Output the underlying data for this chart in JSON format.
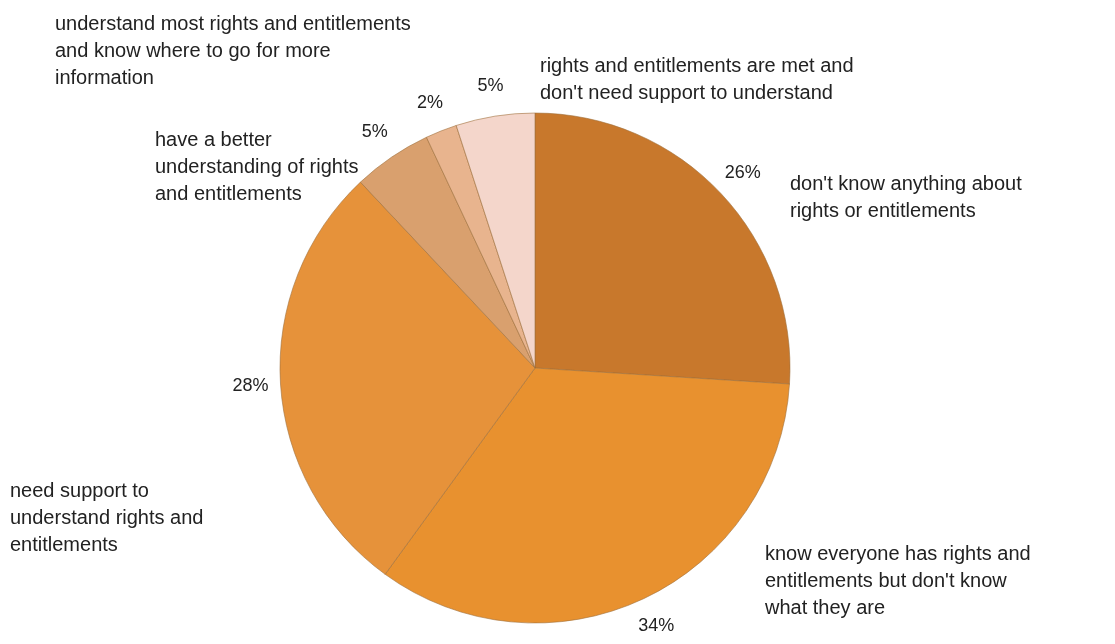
{
  "chart_data": {
    "type": "pie",
    "categories": [
      "don't know anything about rights or entitlements",
      "know everyone has rights and entitlements but don't know what they are",
      "need support to understand rights and entitlements",
      "have a better understanding of rights and entitlements",
      "understand most rights and entitlements and know where to go for more information",
      "rights and entitlements are met and don't need support to understand"
    ],
    "values": [
      26,
      34,
      28,
      5,
      2,
      5
    ],
    "colors": [
      "#c8782c",
      "#e8912f",
      "#e6923a",
      "#d9a06e",
      "#e8b48e",
      "#f4d6cb"
    ],
    "value_labels": [
      "26%",
      "34%",
      "28%",
      "5%",
      "2%",
      "5%"
    ]
  }
}
